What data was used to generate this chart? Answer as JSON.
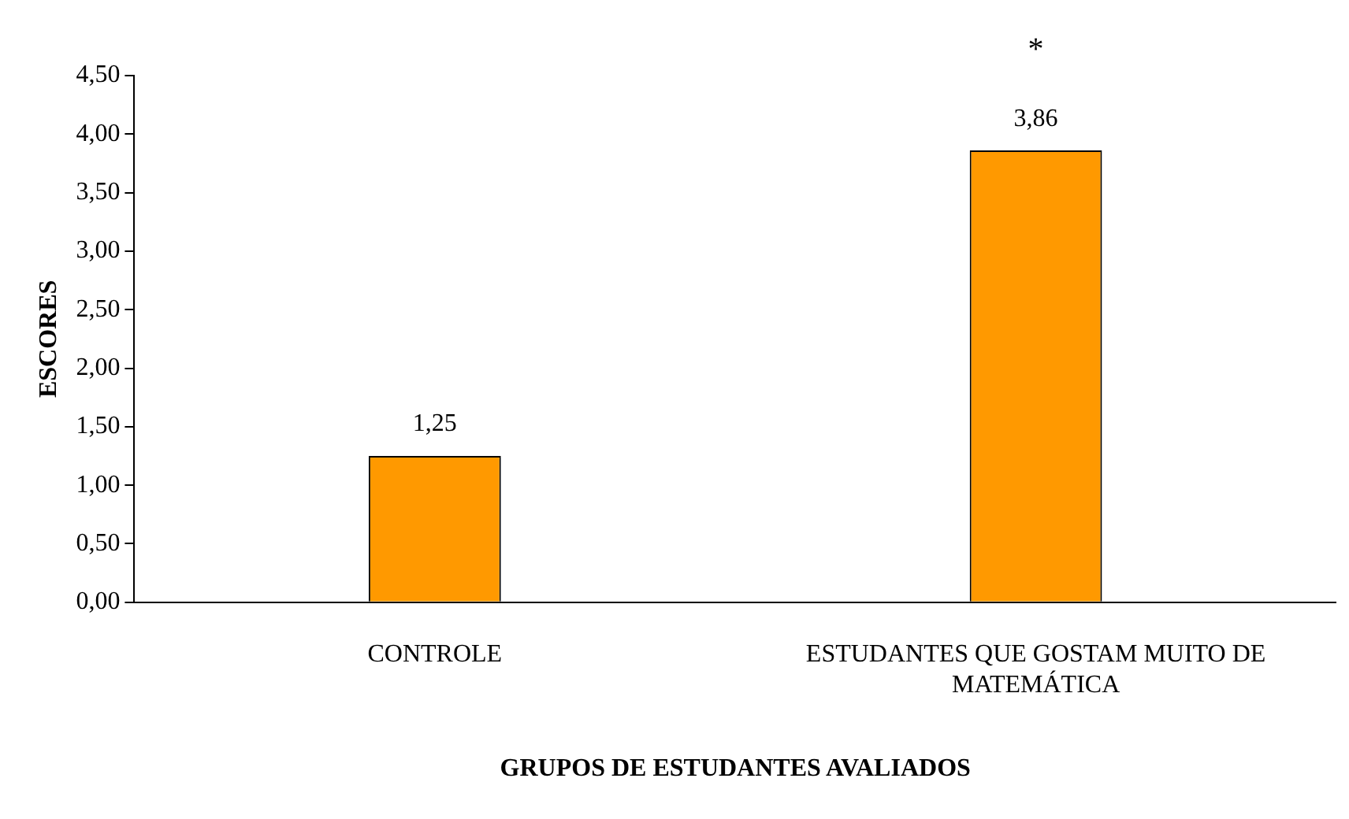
{
  "chart_data": {
    "type": "bar",
    "xlabel": "GRUPOS DE ESTUDANTES AVALIADOS",
    "ylabel": "ESCORES",
    "categories": [
      "CONTROLE",
      "ESTUDANTES QUE GOSTAM MUITO DE MATEMÁTICA"
    ],
    "values": [
      1.25,
      3.86
    ],
    "colors": [
      "#ff9900",
      "#ff9900"
    ],
    "value_labels": [
      "1,25",
      "3,86"
    ],
    "ylim": [
      0,
      4.5
    ],
    "yticks": [
      {
        "value": 0,
        "label": "0,00"
      },
      {
        "value": 0.5,
        "label": "0,50"
      },
      {
        "value": 1,
        "label": "1,00"
      },
      {
        "value": 1.5,
        "label": "1,50"
      },
      {
        "value": 2,
        "label": "2,00"
      },
      {
        "value": 2.5,
        "label": "2,50"
      },
      {
        "value": 3,
        "label": "3,00"
      },
      {
        "value": 3.5,
        "label": "3,50"
      },
      {
        "value": 4,
        "label": "4,00"
      },
      {
        "value": 4.5,
        "label": "4,50"
      }
    ],
    "annotations": [
      "*"
    ],
    "grid": false,
    "legend": false
  }
}
